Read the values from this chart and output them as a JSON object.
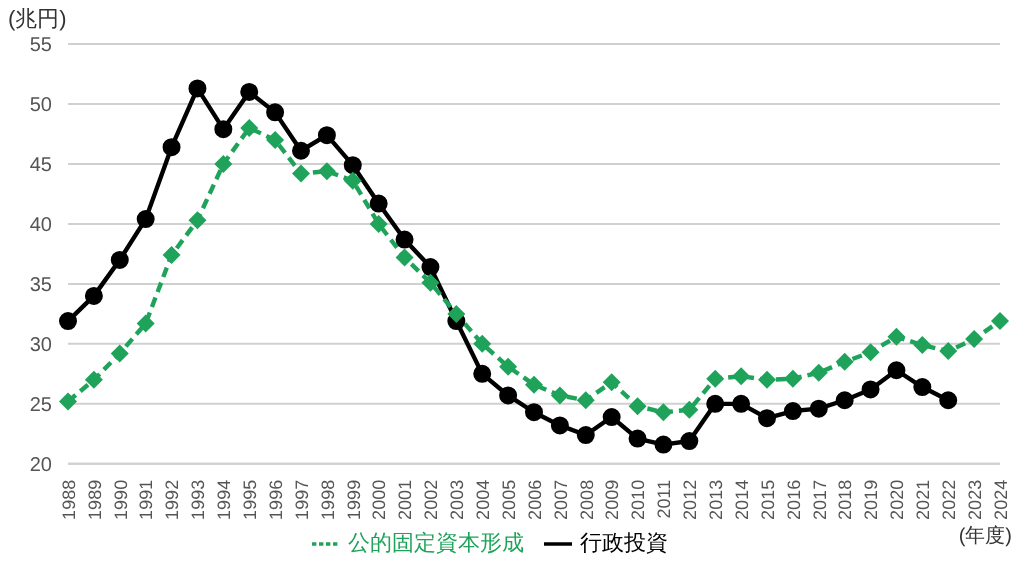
{
  "chart_data": {
    "type": "line",
    "ylabel": "(兆円)",
    "xlabel": "(年度)",
    "categories": [
      "1988",
      "1989",
      "1990",
      "1991",
      "1992",
      "1993",
      "1994",
      "1995",
      "1996",
      "1997",
      "1998",
      "1999",
      "2000",
      "2001",
      "2002",
      "2003",
      "2004",
      "2005",
      "2006",
      "2007",
      "2008",
      "2009",
      "2010",
      "2011",
      "2012",
      "2013",
      "2014",
      "2015",
      "2016",
      "2017",
      "2018",
      "2019",
      "2020",
      "2021",
      "2022",
      "2023",
      "2024"
    ],
    "series": [
      {
        "name": "行政投資",
        "color": "#000000",
        "marker": "circle",
        "line_style": "solid",
        "values": [
          31.9,
          34.0,
          37.0,
          40.4,
          46.4,
          51.3,
          47.9,
          51.0,
          49.3,
          46.1,
          47.4,
          44.9,
          41.7,
          38.7,
          36.4,
          31.9,
          27.5,
          25.7,
          24.3,
          23.2,
          22.4,
          23.9,
          22.1,
          21.6,
          21.9,
          25.0,
          25.0,
          23.8,
          24.4,
          24.6,
          25.3,
          26.2,
          27.8,
          26.4,
          25.3,
          null,
          null
        ]
      },
      {
        "name": "公的固定資本形成",
        "color": "#1fa35a",
        "marker": "diamond",
        "line_style": "dashed",
        "values": [
          25.2,
          27.0,
          29.2,
          31.7,
          37.4,
          40.3,
          45.0,
          48.0,
          47.0,
          44.2,
          44.4,
          43.6,
          40.0,
          37.2,
          35.1,
          32.5,
          30.0,
          28.1,
          26.6,
          25.7,
          25.3,
          26.8,
          24.8,
          24.3,
          24.5,
          27.1,
          27.3,
          27.0,
          27.1,
          27.6,
          28.5,
          29.3,
          30.6,
          29.9,
          29.4,
          30.4,
          31.9
        ]
      }
    ],
    "ylim": [
      20,
      55
    ],
    "yticks": [
      20,
      25,
      30,
      35,
      40,
      45,
      50,
      55
    ],
    "grid": "y",
    "legend": "bottom"
  }
}
